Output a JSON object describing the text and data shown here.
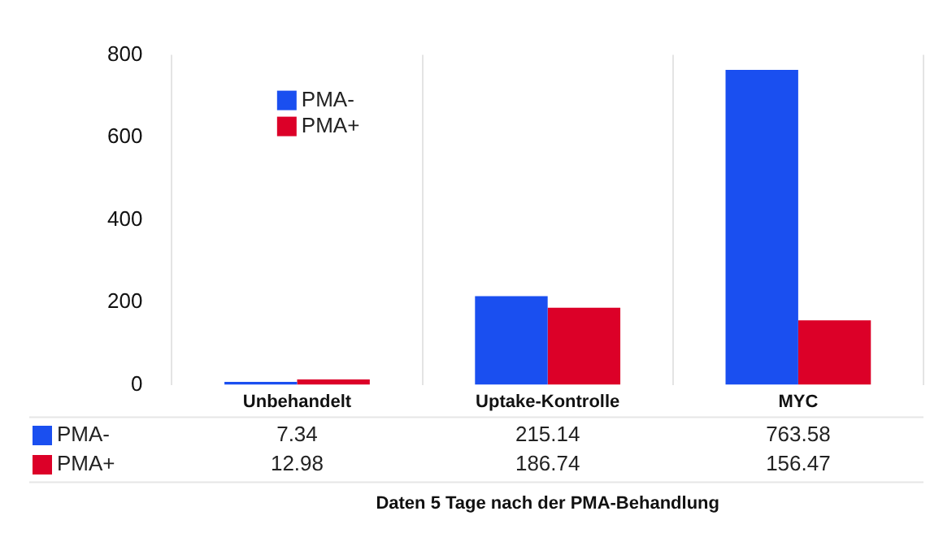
{
  "chart_data": {
    "type": "bar",
    "categories": [
      "Unbehandelt",
      "Uptake-Kontrolle",
      "MYC"
    ],
    "series": [
      {
        "name": "PMA-",
        "color": "#1a4ff0",
        "values": [
          7.34,
          215.14,
          763.58
        ]
      },
      {
        "name": "PMA+",
        "color": "#dc0028",
        "values": [
          12.98,
          186.74,
          156.47
        ]
      }
    ],
    "ylim": [
      0,
      800
    ],
    "yticks": [
      0,
      200,
      400,
      600,
      800
    ],
    "grid": "x",
    "legend": "top left",
    "data_labels": true,
    "annotations": [
      "Daten 5 Tage nach der PMA-Behandlung"
    ]
  }
}
